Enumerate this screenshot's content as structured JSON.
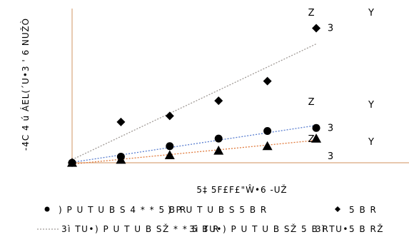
{
  "chart_data": {
    "type": "scatter",
    "title": "",
    "xlabel": "5‡ 5F£F£\"Ŵ•6  -UŽ",
    "ylabel": "-4C 4 ú ÁEL(´U•3 ' 6  NUŽÒ",
    "x": [
      0,
      1,
      2,
      3,
      4,
      5
    ],
    "xlim": [
      0,
      6.9
    ],
    "ylim": [
      0,
      10.2
    ],
    "grid": false,
    "series": [
      {
        "marker": "diamond",
        "color": "#000000",
        "trend_color": "#a09a96",
        "values": [
          0,
          2.7,
          3.1,
          4.1,
          5.4,
          8.9
        ],
        "annotations": [
          "Z",
          "Y",
          "3"
        ]
      },
      {
        "marker": "circle",
        "color": "#000000",
        "trend_color": "#5a7fd0",
        "values": [
          0,
          0.4,
          1.1,
          1.6,
          2.1,
          2.3
        ],
        "annotations": [
          "Z",
          "Y",
          "3"
        ]
      },
      {
        "marker": "triangle",
        "color": "#000000",
        "trend_color": "#e07a3c",
        "values": [
          0,
          0.2,
          0.5,
          0.8,
          1.1,
          1.6
        ],
        "annotations": [
          "Z",
          "Y",
          "3"
        ]
      }
    ],
    "legend": {
      "placement": "bottom",
      "entries": [
        ") P U T U B S 4 * *  5 B R",
        ") P U T U B S  5 B R",
        "5 B R",
        "3ì TU•) P U T U B SŽ * *  5 B R",
        "3ì TU•) P U T U B SŽ  5 B R",
        "3ì TU•5 B RŽ"
      ]
    }
  }
}
